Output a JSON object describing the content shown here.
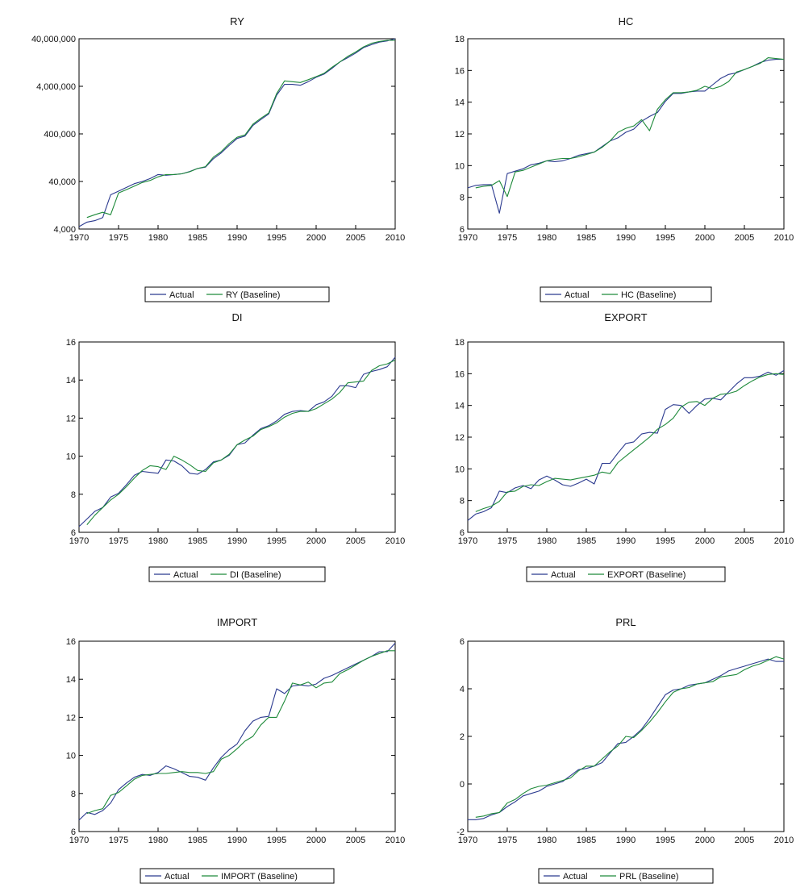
{
  "chart_data": [
    {
      "type": "line",
      "title": "RY",
      "scale": "log",
      "ylim": [
        4000,
        40000000
      ],
      "yticks": [
        4000,
        40000,
        400000,
        4000000,
        40000000
      ],
      "ytick_labels": [
        "4,000",
        "40,000",
        "400,000",
        "4,000,000",
        "40,000,000"
      ],
      "xlim": [
        1970,
        2010
      ],
      "xticks": [
        "1970",
        "1975",
        "1980",
        "1985",
        "1990",
        "1995",
        "2000",
        "2005",
        "2010"
      ],
      "legend_position": "bottom",
      "series": [
        {
          "name": "Actual",
          "color": "#2b3a8f",
          "x_start": 1970,
          "values": [
            4500,
            5600,
            6000,
            7000,
            21000,
            25000,
            30000,
            36000,
            40000,
            46000,
            56000,
            54000,
            56000,
            58000,
            65000,
            75000,
            80000,
            120000,
            160000,
            230000,
            320000,
            360000,
            600000,
            800000,
            1050000,
            2600000,
            4400000,
            4400000,
            4200000,
            5000000,
            6200000,
            7200000,
            9500000,
            13000000,
            16000000,
            20000000,
            26000000,
            30000000,
            34000000,
            36000000,
            40000000
          ]
        },
        {
          "name": "RY (Baseline)",
          "color": "#1e8a3a",
          "x_start": 1971,
          "values": [
            7000,
            8000,
            9000,
            8000,
            23000,
            27000,
            32000,
            38000,
            42000,
            50000,
            56000,
            56000,
            58000,
            64000,
            75000,
            82000,
            130000,
            170000,
            250000,
            340000,
            380000,
            640000,
            850000,
            1100000,
            2800000,
            5200000,
            5000000,
            4800000,
            5500000,
            6400000,
            7500000,
            10000000,
            13000000,
            17000000,
            21000000,
            27000000,
            32000000,
            35000000,
            37000000,
            37000000
          ]
        }
      ]
    },
    {
      "type": "line",
      "title": "HC",
      "ylim": [
        6,
        18
      ],
      "yticks": [
        6,
        8,
        10,
        12,
        14,
        16,
        18
      ],
      "ytick_labels": [
        "6",
        "8",
        "10",
        "12",
        "14",
        "16",
        "18"
      ],
      "xlim": [
        1970,
        2010
      ],
      "xticks": [
        "1970",
        "1975",
        "1980",
        "1985",
        "1990",
        "1995",
        "2000",
        "2005",
        "2010"
      ],
      "legend_position": "bottom",
      "series": [
        {
          "name": "Actual",
          "color": "#2b3a8f",
          "x_start": 1970,
          "values": [
            8.6,
            8.75,
            8.8,
            8.8,
            7.0,
            9.5,
            9.65,
            9.8,
            10.05,
            10.15,
            10.3,
            10.25,
            10.3,
            10.45,
            10.65,
            10.75,
            10.85,
            11.2,
            11.55,
            11.75,
            12.1,
            12.3,
            12.8,
            13.1,
            13.35,
            14.05,
            14.55,
            14.55,
            14.65,
            14.7,
            14.7,
            15.1,
            15.5,
            15.75,
            15.85,
            16.05,
            16.25,
            16.5,
            16.65,
            16.7,
            16.7
          ]
        },
        {
          "name": "HC (Baseline)",
          "color": "#1e8a3a",
          "x_start": 1971,
          "values": [
            8.6,
            8.7,
            8.75,
            9.05,
            8.05,
            9.6,
            9.7,
            9.9,
            10.1,
            10.3,
            10.4,
            10.45,
            10.45,
            10.55,
            10.7,
            10.85,
            11.15,
            11.55,
            12.1,
            12.35,
            12.5,
            12.9,
            12.2,
            13.55,
            14.15,
            14.6,
            14.6,
            14.65,
            14.75,
            15.0,
            14.85,
            15.0,
            15.3,
            15.9,
            16.05,
            16.25,
            16.45,
            16.8,
            16.75,
            16.7
          ]
        }
      ]
    },
    {
      "type": "line",
      "title": "DI",
      "ylim": [
        6,
        16
      ],
      "yticks": [
        6,
        8,
        10,
        12,
        14,
        16
      ],
      "ytick_labels": [
        "6",
        "8",
        "10",
        "12",
        "14",
        "16"
      ],
      "xlim": [
        1970,
        2010
      ],
      "xticks": [
        "1970",
        "1975",
        "1980",
        "1985",
        "1990",
        "1995",
        "2000",
        "2005",
        "2010"
      ],
      "legend_position": "bottom",
      "series": [
        {
          "name": "Actual",
          "color": "#2b3a8f",
          "x_start": 1970,
          "values": [
            6.3,
            6.7,
            7.1,
            7.3,
            7.85,
            8.05,
            8.5,
            9.0,
            9.2,
            9.15,
            9.1,
            9.8,
            9.75,
            9.5,
            9.1,
            9.05,
            9.3,
            9.7,
            9.8,
            10.05,
            10.6,
            10.7,
            11.1,
            11.45,
            11.6,
            11.85,
            12.2,
            12.35,
            12.4,
            12.35,
            12.7,
            12.85,
            13.15,
            13.7,
            13.7,
            13.6,
            14.3,
            14.45,
            14.55,
            14.7,
            15.2
          ]
        },
        {
          "name": "DI (Baseline)",
          "color": "#1e8a3a",
          "x_start": 1971,
          "values": [
            6.4,
            6.9,
            7.3,
            7.7,
            8.0,
            8.4,
            8.85,
            9.25,
            9.5,
            9.45,
            9.3,
            10.0,
            9.8,
            9.55,
            9.25,
            9.2,
            9.65,
            9.8,
            10.1,
            10.6,
            10.85,
            11.05,
            11.4,
            11.55,
            11.75,
            12.05,
            12.25,
            12.35,
            12.35,
            12.5,
            12.75,
            13.0,
            13.35,
            13.85,
            13.9,
            13.95,
            14.5,
            14.75,
            14.85,
            15.05
          ]
        }
      ]
    },
    {
      "type": "line",
      "title": "EXPORT",
      "ylim": [
        6,
        18
      ],
      "yticks": [
        6,
        8,
        10,
        12,
        14,
        16,
        18
      ],
      "ytick_labels": [
        "6",
        "8",
        "10",
        "12",
        "14",
        "16",
        "18"
      ],
      "xlim": [
        1970,
        2010
      ],
      "xticks": [
        "1970",
        "1975",
        "1980",
        "1985",
        "1990",
        "1995",
        "2000",
        "2005",
        "2010"
      ],
      "legend_position": "bottom",
      "series": [
        {
          "name": "Actual",
          "color": "#2b3a8f",
          "x_start": 1970,
          "values": [
            6.75,
            7.15,
            7.3,
            7.55,
            8.6,
            8.5,
            8.8,
            8.95,
            8.75,
            9.3,
            9.55,
            9.3,
            9.0,
            8.9,
            9.1,
            9.35,
            9.05,
            10.35,
            10.35,
            11.0,
            11.6,
            11.7,
            12.2,
            12.3,
            12.25,
            13.75,
            14.05,
            14.0,
            13.5,
            14.0,
            14.4,
            14.45,
            14.35,
            14.85,
            15.35,
            15.75,
            15.75,
            15.85,
            16.1,
            15.9,
            16.2
          ]
        },
        {
          "name": "EXPORT (Baseline)",
          "color": "#1e8a3a",
          "x_start": 1971,
          "values": [
            7.3,
            7.5,
            7.65,
            7.95,
            8.55,
            8.6,
            8.9,
            9.0,
            8.95,
            9.2,
            9.4,
            9.35,
            9.3,
            9.4,
            9.5,
            9.6,
            9.8,
            9.7,
            10.4,
            10.8,
            11.2,
            11.6,
            12.0,
            12.5,
            12.8,
            13.2,
            13.9,
            14.2,
            14.25,
            14.0,
            14.45,
            14.7,
            14.75,
            14.9,
            15.25,
            15.55,
            15.8,
            15.95,
            16.0,
            15.95
          ]
        }
      ]
    },
    {
      "type": "line",
      "title": "IMPORT",
      "ylim": [
        6,
        16
      ],
      "yticks": [
        6,
        8,
        10,
        12,
        14,
        16
      ],
      "ytick_labels": [
        "6",
        "8",
        "10",
        "12",
        "14",
        "16"
      ],
      "xlim": [
        1970,
        2010
      ],
      "xticks": [
        "1970",
        "1975",
        "1980",
        "1985",
        "1990",
        "1995",
        "2000",
        "2005",
        "2010"
      ],
      "legend_position": "bottom",
      "series": [
        {
          "name": "Actual",
          "color": "#2b3a8f",
          "x_start": 1970,
          "values": [
            6.6,
            7.0,
            6.9,
            7.1,
            7.5,
            8.2,
            8.55,
            8.85,
            9.0,
            8.95,
            9.1,
            9.45,
            9.3,
            9.1,
            8.9,
            8.85,
            8.7,
            9.35,
            9.9,
            10.3,
            10.6,
            11.3,
            11.8,
            12.0,
            12.05,
            13.5,
            13.25,
            13.65,
            13.7,
            13.65,
            13.75,
            14.05,
            14.2,
            14.4,
            14.6,
            14.8,
            15.0,
            15.2,
            15.45,
            15.45,
            15.9
          ]
        },
        {
          "name": "IMPORT (Baseline)",
          "color": "#1e8a3a",
          "x_start": 1971,
          "values": [
            6.95,
            7.1,
            7.2,
            7.9,
            8.05,
            8.4,
            8.75,
            8.95,
            9.0,
            9.05,
            9.05,
            9.1,
            9.15,
            9.1,
            9.1,
            9.05,
            9.15,
            9.8,
            10.0,
            10.35,
            10.75,
            11.0,
            11.6,
            12.0,
            12.0,
            12.85,
            13.8,
            13.7,
            13.85,
            13.55,
            13.8,
            13.85,
            14.3,
            14.5,
            14.75,
            15.0,
            15.2,
            15.35,
            15.5,
            15.5
          ]
        }
      ]
    },
    {
      "type": "line",
      "title": "PRL",
      "ylim": [
        -2,
        6
      ],
      "yticks": [
        -2,
        0,
        2,
        4,
        6
      ],
      "ytick_labels": [
        "-2",
        "0",
        "2",
        "4",
        "6"
      ],
      "xlim": [
        1970,
        2010
      ],
      "xticks": [
        "1970",
        "1975",
        "1980",
        "1985",
        "1990",
        "1995",
        "2000",
        "2005",
        "2010"
      ],
      "legend_position": "bottom",
      "series": [
        {
          "name": "Actual",
          "color": "#2b3a8f",
          "x_start": 1970,
          "values": [
            -1.5,
            -1.5,
            -1.45,
            -1.3,
            -1.2,
            -0.95,
            -0.75,
            -0.5,
            -0.4,
            -0.3,
            -0.1,
            0.0,
            0.1,
            0.35,
            0.6,
            0.65,
            0.75,
            0.9,
            1.3,
            1.7,
            1.75,
            2.0,
            2.3,
            2.75,
            3.25,
            3.75,
            3.95,
            4.0,
            4.15,
            4.2,
            4.25,
            4.4,
            4.55,
            4.75,
            4.85,
            4.95,
            5.05,
            5.15,
            5.25,
            5.15,
            5.15
          ]
        },
        {
          "name": "PRL (Baseline)",
          "color": "#1e8a3a",
          "x_start": 1971,
          "values": [
            -1.4,
            -1.35,
            -1.25,
            -1.2,
            -0.8,
            -0.65,
            -0.4,
            -0.2,
            -0.1,
            -0.05,
            0.05,
            0.15,
            0.25,
            0.55,
            0.75,
            0.75,
            1.05,
            1.35,
            1.6,
            2.0,
            1.95,
            2.25,
            2.6,
            3.0,
            3.45,
            3.85,
            4.0,
            4.05,
            4.2,
            4.25,
            4.3,
            4.5,
            4.55,
            4.6,
            4.8,
            4.95,
            5.05,
            5.2,
            5.35,
            5.25
          ]
        }
      ]
    }
  ]
}
